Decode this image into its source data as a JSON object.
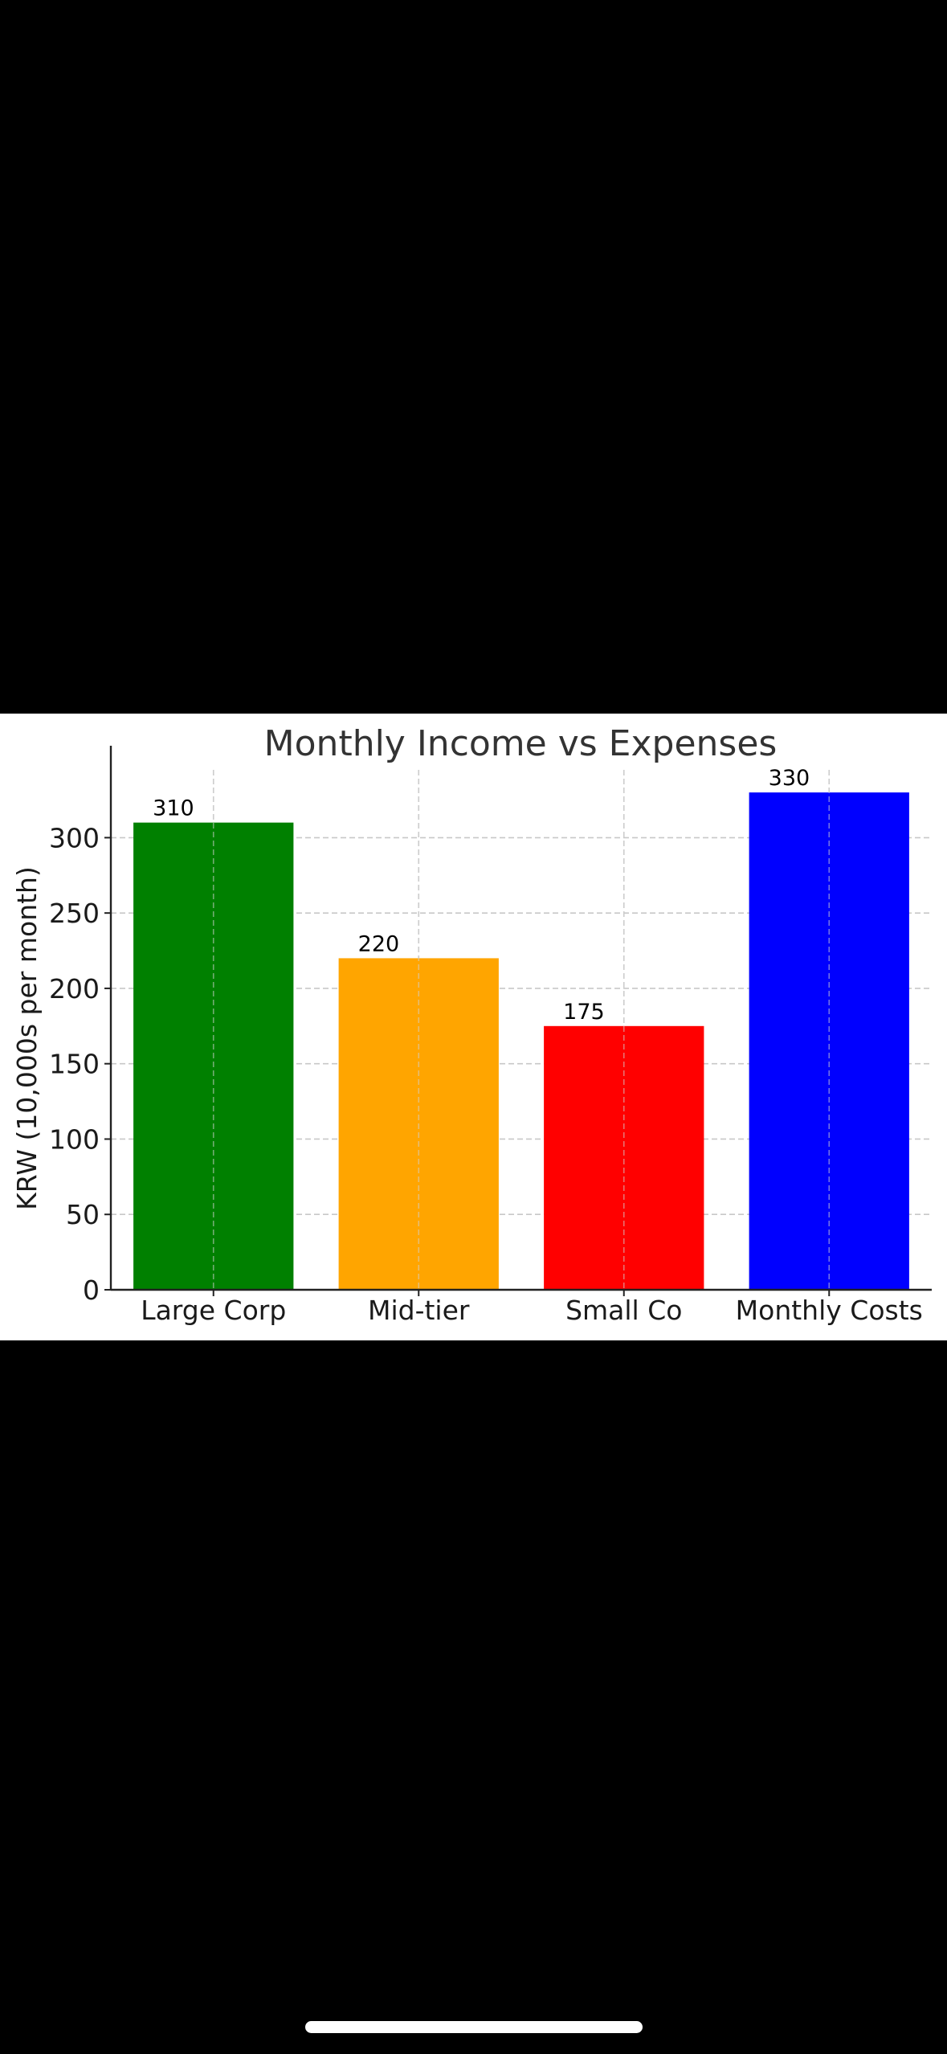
{
  "chart_data": {
    "type": "bar",
    "title": "Monthly Income vs Expenses",
    "xlabel": "",
    "ylabel": "KRW (10,000s per month)",
    "categories": [
      "Large Corp",
      "Mid-tier",
      "Small Co",
      "Monthly Costs"
    ],
    "values": [
      310,
      220,
      175,
      330
    ],
    "value_labels": [
      "310",
      "220",
      "175",
      "330"
    ],
    "colors": [
      "#008000",
      "#FFA500",
      "#FF0000",
      "#0000FF"
    ],
    "ylim": [
      0,
      345
    ],
    "yticks": [
      0,
      50,
      100,
      150,
      200,
      250,
      300
    ],
    "grid": true,
    "legend": "none"
  }
}
